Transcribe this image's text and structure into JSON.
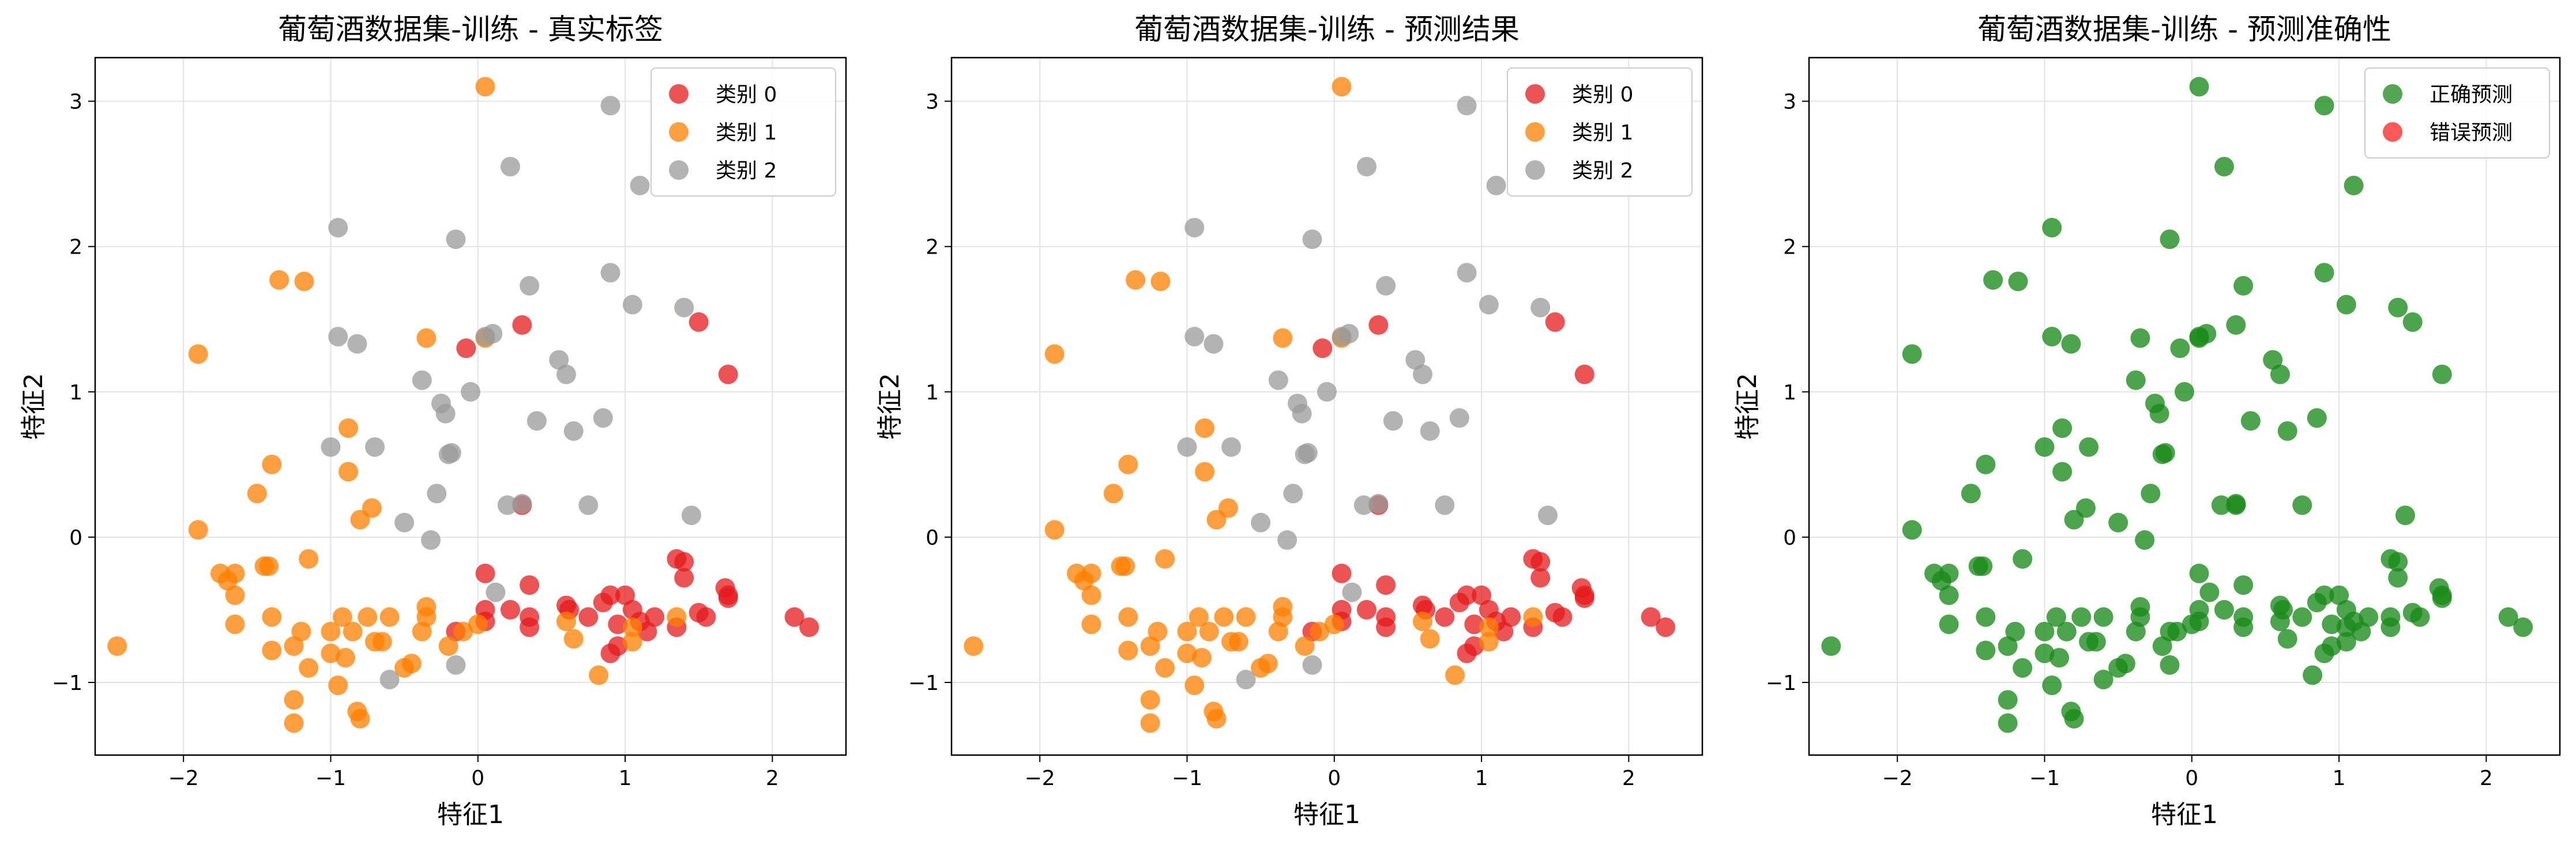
{
  "colors": {
    "class0": "#e41a1c",
    "class1": "#ff7f00",
    "class2": "#999999",
    "correct": "#1a8a1a",
    "wrong": "#ff2020"
  },
  "chart_data": [
    {
      "type": "scatter",
      "title": "葡萄酒数据集-训练 - 真实标签",
      "xlabel": "特征1",
      "ylabel": "特征2",
      "xlim": [
        -2.6,
        2.5
      ],
      "ylim": [
        -1.5,
        3.3
      ],
      "xticks": [
        -2,
        -1,
        0,
        1,
        2
      ],
      "yticks": [
        -1,
        0,
        1,
        2,
        3
      ],
      "grid": true,
      "legend_position": "top-right",
      "series": [
        {
          "name": "类别 0",
          "color": "#e41a1c",
          "points": [
            [
              -0.15,
              -0.65
            ],
            [
              0.05,
              -0.25
            ],
            [
              0.05,
              -0.5
            ],
            [
              0.05,
              -0.58
            ],
            [
              0.22,
              -0.5
            ],
            [
              0.35,
              -0.62
            ],
            [
              0.35,
              -0.33
            ],
            [
              0.35,
              -0.55
            ],
            [
              0.6,
              -0.47
            ],
            [
              0.62,
              -0.5
            ],
            [
              0.75,
              -0.55
            ],
            [
              0.85,
              -0.45
            ],
            [
              0.9,
              -0.4
            ],
            [
              0.95,
              -0.6
            ],
            [
              1.0,
              -0.4
            ],
            [
              0.9,
              -0.8
            ],
            [
              1.05,
              -0.5
            ],
            [
              1.1,
              -0.58
            ],
            [
              1.15,
              -0.65
            ],
            [
              1.2,
              -0.55
            ],
            [
              1.35,
              -0.62
            ],
            [
              1.4,
              -0.28
            ],
            [
              1.35,
              -0.15
            ],
            [
              1.4,
              -0.17
            ],
            [
              1.5,
              -0.52
            ],
            [
              1.55,
              -0.55
            ],
            [
              1.68,
              -0.35
            ],
            [
              1.7,
              -0.4
            ],
            [
              1.7,
              -0.42
            ],
            [
              2.15,
              -0.55
            ],
            [
              2.25,
              -0.62
            ],
            [
              0.3,
              0.22
            ],
            [
              -0.08,
              1.3
            ],
            [
              0.3,
              1.46
            ],
            [
              1.5,
              1.48
            ],
            [
              1.7,
              1.12
            ],
            [
              0.95,
              -0.75
            ]
          ]
        },
        {
          "name": "类别 1",
          "color": "#ff7f00",
          "points": [
            [
              -2.45,
              -0.75
            ],
            [
              -1.9,
              1.26
            ],
            [
              -1.9,
              0.05
            ],
            [
              -1.75,
              -0.25
            ],
            [
              -1.7,
              -0.3
            ],
            [
              -1.65,
              -0.25
            ],
            [
              -1.65,
              -0.4
            ],
            [
              -1.65,
              -0.6
            ],
            [
              -1.5,
              0.3
            ],
            [
              -1.45,
              -0.2
            ],
            [
              -1.42,
              -0.2
            ],
            [
              -1.4,
              -0.55
            ],
            [
              -1.4,
              -0.78
            ],
            [
              -1.4,
              0.5
            ],
            [
              -1.35,
              1.77
            ],
            [
              -1.25,
              -1.12
            ],
            [
              -1.25,
              -1.28
            ],
            [
              -1.25,
              -0.75
            ],
            [
              -1.2,
              -0.65
            ],
            [
              -1.18,
              1.76
            ],
            [
              -1.15,
              -0.15
            ],
            [
              -1.15,
              -0.9
            ],
            [
              -1.0,
              -0.8
            ],
            [
              -1.0,
              -0.65
            ],
            [
              -0.95,
              -1.02
            ],
            [
              -0.92,
              -0.55
            ],
            [
              -0.9,
              -0.83
            ],
            [
              -0.88,
              0.75
            ],
            [
              -0.88,
              0.45
            ],
            [
              -0.85,
              -0.65
            ],
            [
              -0.82,
              -1.2
            ],
            [
              -0.8,
              -1.25
            ],
            [
              -0.8,
              0.12
            ],
            [
              -0.75,
              -0.55
            ],
            [
              -0.72,
              0.2
            ],
            [
              -0.7,
              -0.72
            ],
            [
              -0.65,
              -0.72
            ],
            [
              -0.6,
              -0.55
            ],
            [
              -0.5,
              -0.9
            ],
            [
              -0.45,
              -0.87
            ],
            [
              -0.38,
              -0.65
            ],
            [
              -0.35,
              -0.48
            ],
            [
              -0.35,
              -0.55
            ],
            [
              -0.35,
              1.37
            ],
            [
              -0.2,
              -0.75
            ],
            [
              -0.1,
              -0.65
            ],
            [
              0.0,
              -0.6
            ],
            [
              0.05,
              1.37
            ],
            [
              0.05,
              3.1
            ],
            [
              0.6,
              -0.58
            ],
            [
              0.65,
              -0.7
            ],
            [
              0.82,
              -0.95
            ],
            [
              1.05,
              -0.62
            ],
            [
              1.05,
              -0.72
            ],
            [
              1.35,
              -0.55
            ]
          ]
        },
        {
          "name": "类别 2",
          "color": "#999999",
          "points": [
            [
              -1.0,
              0.62
            ],
            [
              -0.95,
              1.38
            ],
            [
              -0.95,
              2.13
            ],
            [
              -0.82,
              1.33
            ],
            [
              -0.7,
              0.62
            ],
            [
              -0.6,
              -0.98
            ],
            [
              -0.5,
              0.1
            ],
            [
              -0.38,
              1.08
            ],
            [
              -0.32,
              -0.02
            ],
            [
              -0.28,
              0.3
            ],
            [
              -0.25,
              0.92
            ],
            [
              -0.22,
              0.85
            ],
            [
              -0.2,
              0.57
            ],
            [
              -0.18,
              0.58
            ],
            [
              -0.15,
              2.05
            ],
            [
              -0.15,
              -0.88
            ],
            [
              -0.05,
              1.0
            ],
            [
              0.05,
              1.38
            ],
            [
              0.1,
              1.4
            ],
            [
              0.12,
              -0.38
            ],
            [
              0.2,
              0.22
            ],
            [
              0.22,
              2.55
            ],
            [
              0.3,
              0.23
            ],
            [
              0.35,
              1.73
            ],
            [
              0.4,
              0.8
            ],
            [
              0.55,
              1.22
            ],
            [
              0.6,
              1.12
            ],
            [
              0.65,
              0.73
            ],
            [
              0.75,
              0.22
            ],
            [
              0.85,
              0.82
            ],
            [
              0.9,
              2.97
            ],
            [
              0.9,
              1.82
            ],
            [
              1.05,
              1.6
            ],
            [
              1.1,
              2.42
            ],
            [
              1.4,
              1.58
            ],
            [
              1.45,
              0.15
            ]
          ]
        }
      ]
    },
    {
      "type": "scatter",
      "title": "葡萄酒数据集-训练 - 预测结果",
      "xlabel": "特征1",
      "ylabel": "特征2",
      "xlim": [
        -2.6,
        2.5
      ],
      "ylim": [
        -1.5,
        3.3
      ],
      "xticks": [
        -2,
        -1,
        0,
        1,
        2
      ],
      "yticks": [
        -1,
        0,
        1,
        2,
        3
      ],
      "grid": true,
      "legend_position": "top-right",
      "series_from": 0
    },
    {
      "type": "scatter",
      "title": "葡萄酒数据集-训练 - 预测准确性",
      "xlabel": "特征1",
      "ylabel": "特征2",
      "xlim": [
        -2.6,
        2.5
      ],
      "ylim": [
        -1.5,
        3.3
      ],
      "xticks": [
        -2,
        -1,
        0,
        1,
        2
      ],
      "yticks": [
        -1,
        0,
        1,
        2,
        3
      ],
      "grid": true,
      "legend_position": "top-right",
      "legend": [
        {
          "name": "正确预测",
          "color": "#1a8a1a"
        },
        {
          "name": "错误预测",
          "color": "#ff2020"
        }
      ],
      "accuracy": {
        "correct_color": "#1a8a1a",
        "wrong_color": "#ff2020",
        "wrong_count": 0
      }
    }
  ]
}
